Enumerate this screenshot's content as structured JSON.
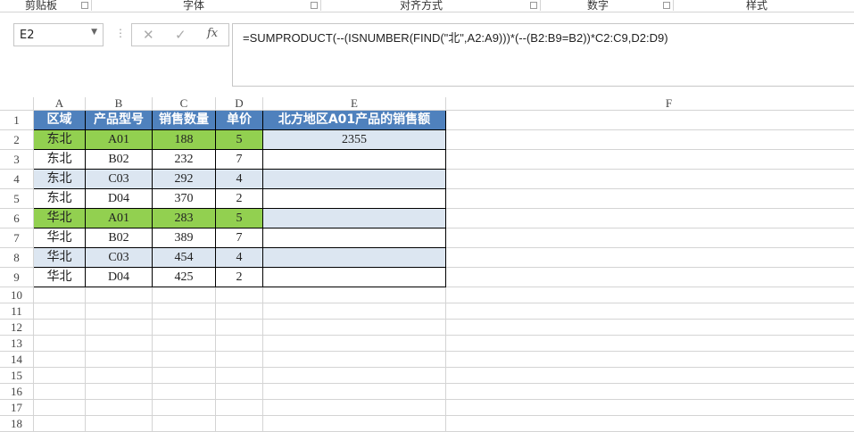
{
  "ribbon": {
    "groups": [
      "剪贴板",
      "字体",
      "对齐方式",
      "数字",
      "样式"
    ]
  },
  "formula_bar": {
    "name_box": "E2",
    "cancel_icon": "✕",
    "enter_icon": "✓",
    "fx_label": "fx",
    "formula": "=SUMPRODUCT(--(ISNUMBER(FIND(\"北\",A2:A9)))*(--(B2:B9=B2))*C2:C9,D2:D9)"
  },
  "columns": [
    "A",
    "B",
    "C",
    "D",
    "E",
    "F"
  ],
  "row_numbers": [
    "1",
    "2",
    "3",
    "4",
    "5",
    "6",
    "7",
    "8",
    "9",
    "10",
    "11",
    "12",
    "13",
    "14",
    "15",
    "16",
    "17",
    "18"
  ],
  "table": {
    "headers": [
      "区域",
      "产品型号",
      "销售数量",
      "单价",
      "北方地区A01产品的销售额"
    ],
    "rows": [
      [
        "东北",
        "A01",
        "188",
        "5",
        "2355"
      ],
      [
        "东北",
        "B02",
        "232",
        "7",
        ""
      ],
      [
        "东北",
        "C03",
        "292",
        "4",
        ""
      ],
      [
        "东北",
        "D04",
        "370",
        "2",
        ""
      ],
      [
        "华北",
        "A01",
        "283",
        "5",
        ""
      ],
      [
        "华北",
        "B02",
        "389",
        "7",
        ""
      ],
      [
        "华北",
        "C03",
        "454",
        "4",
        ""
      ],
      [
        "华北",
        "D04",
        "425",
        "2",
        ""
      ]
    ]
  },
  "colors": {
    "header": "#4f81bd",
    "highlight": "#92d050",
    "band": "#dce6f1"
  }
}
